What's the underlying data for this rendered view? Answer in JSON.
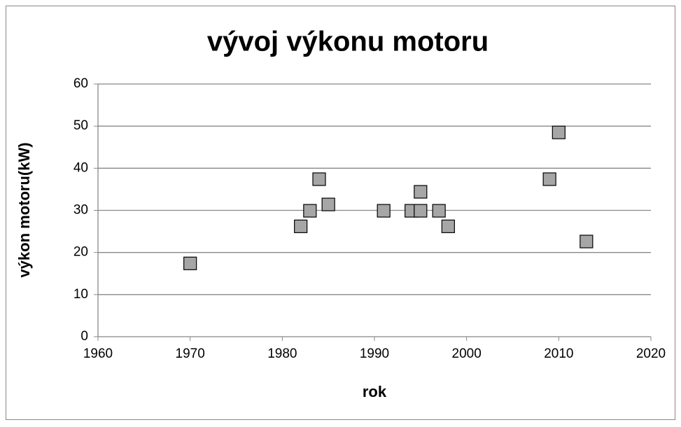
{
  "chart_data": {
    "type": "scatter",
    "title": "vývoj výkonu motoru",
    "x_label": "rok",
    "y_label": "výkon motoru(kW)",
    "x": [
      1970,
      1982,
      1983,
      1984,
      1985,
      1991,
      1994,
      1995,
      1995,
      1997,
      1998,
      2009,
      2010,
      2013
    ],
    "values": [
      17.4,
      26.2,
      29.9,
      37.4,
      31.4,
      29.9,
      29.9,
      29.9,
      34.4,
      29.9,
      26.2,
      37.4,
      48.5,
      22.6
    ],
    "color": "#a6a6a6",
    "xlim": [
      1960,
      2020
    ],
    "xticks": [
      1960,
      1970,
      1980,
      1990,
      2000,
      2010,
      2020
    ],
    "ylim": [
      0,
      60
    ],
    "yticks": [
      0,
      10,
      20,
      30,
      40,
      50,
      60
    ],
    "grid": true
  }
}
